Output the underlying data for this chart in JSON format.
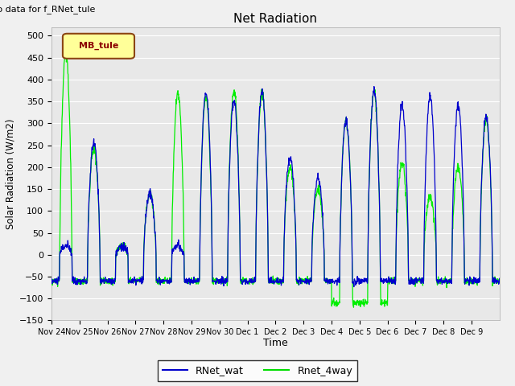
{
  "title": "Net Radiation",
  "xlabel": "Time",
  "ylabel": "Solar Radiation (W/m2)",
  "top_left_text": "No data for f_RNet_tule",
  "legend_box_text": "MB_tule",
  "legend_entries": [
    "RNet_wat",
    "Rnet_4way"
  ],
  "legend_colors": [
    "#0000cc",
    "#00dd00"
  ],
  "ylim": [
    -150,
    520
  ],
  "yticks": [
    -150,
    -100,
    -50,
    0,
    50,
    100,
    150,
    200,
    250,
    300,
    350,
    400,
    450,
    500
  ],
  "fig_bg_color": "#f0f0f0",
  "axes_bg_color": "#e8e8e8",
  "grid_color": "#ffffff",
  "line_color_blue": "#0000cc",
  "line_color_green": "#00ee00",
  "n_days": 16,
  "tick_labels": [
    "Nov 24",
    "Nov 25",
    "Nov 26",
    "Nov 27",
    "Nov 28",
    "Nov 29",
    "Nov 30",
    "Dec 1",
    "Dec 2",
    "Dec 3",
    "Dec 4",
    "Dec 5",
    "Dec 6",
    "Dec 7",
    "Dec 8",
    "Dec 9"
  ],
  "day_peaks_blue": [
    20,
    255,
    20,
    140,
    20,
    375,
    350,
    375,
    225,
    175,
    305,
    375,
    340,
    365,
    340,
    315
  ],
  "day_peaks_green": [
    460,
    240,
    20,
    140,
    370,
    360,
    375,
    370,
    200,
    150,
    305,
    375,
    210,
    130,
    200,
    310
  ],
  "night_val": -60,
  "night_val_deep": -90
}
